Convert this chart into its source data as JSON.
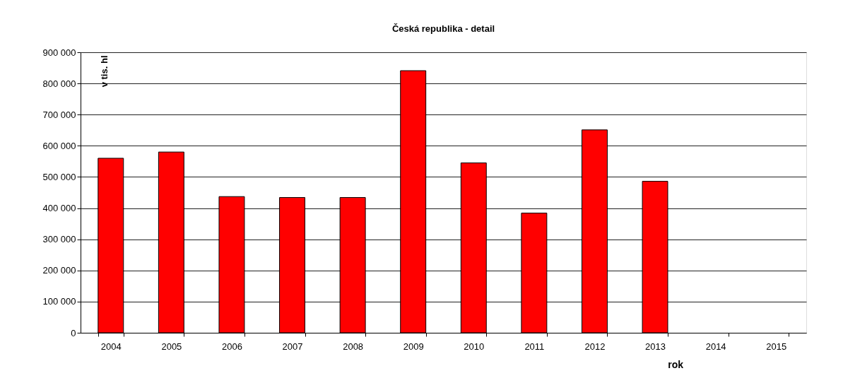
{
  "chart_data": {
    "type": "bar",
    "title": "Česká republika - detail",
    "xlabel": "rok",
    "ylabel": "v tis. hl",
    "categories": [
      "2004",
      "2005",
      "2006",
      "2007",
      "2008",
      "2009",
      "2010",
      "2011",
      "2012",
      "2013",
      "2014",
      "2015"
    ],
    "values": [
      560000,
      580000,
      437000,
      434000,
      434000,
      841000,
      545000,
      384000,
      651000,
      486000,
      null,
      null
    ],
    "color": "#ff0000",
    "ylim": [
      0,
      900000
    ],
    "yticks": [
      {
        "value": 0,
        "label": "0"
      },
      {
        "value": 100000,
        "label": "100 000"
      },
      {
        "value": 200000,
        "label": "200 000"
      },
      {
        "value": 300000,
        "label": "300 000"
      },
      {
        "value": 400000,
        "label": "400 000"
      },
      {
        "value": 500000,
        "label": "500 000"
      },
      {
        "value": 600000,
        "label": "600 000"
      },
      {
        "value": 700000,
        "label": "700 000"
      },
      {
        "value": 800000,
        "label": "800 000"
      },
      {
        "value": 900000,
        "label": "900 000"
      }
    ],
    "grid": "y"
  }
}
